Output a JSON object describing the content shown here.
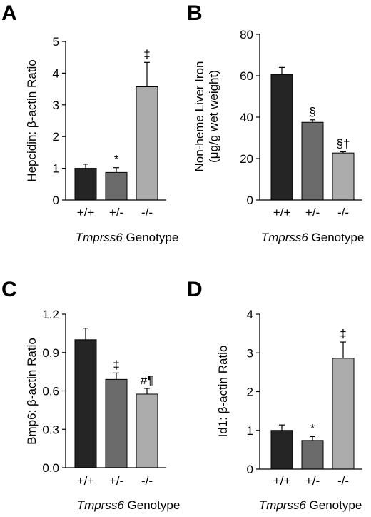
{
  "colors": {
    "genotype_wt": "#252525",
    "genotype_het": "#6b6b6b",
    "genotype_ko": "#acacac",
    "axis": "#000000"
  },
  "chart_data": [
    {
      "panel": "A",
      "type": "bar",
      "categories": [
        "+/+",
        "+/-",
        "-/-"
      ],
      "values": [
        1.0,
        0.87,
        3.57
      ],
      "errors": [
        0.13,
        0.15,
        0.77
      ],
      "markers": [
        "",
        "*",
        "‡"
      ],
      "ylabel": "Hepcidin: β-actin Ratio",
      "ylabel_lines": [
        "Hepcidin: β-actin Ratio"
      ],
      "xlabel_italic": "Tmprss6",
      "xlabel_rest": " Genotype",
      "ylim": [
        0,
        5
      ],
      "yticks": [
        "0",
        "1",
        "2",
        "3",
        "4",
        "5"
      ],
      "ytick_values": [
        0,
        1,
        2,
        3,
        4,
        5
      ],
      "grid": false
    },
    {
      "panel": "B",
      "type": "bar",
      "categories": [
        "+/+",
        "+/-",
        "-/-"
      ],
      "values": [
        60.5,
        37.5,
        22.7
      ],
      "errors": [
        3.5,
        1.2,
        0.6
      ],
      "markers": [
        "",
        "§",
        "§†"
      ],
      "ylabel": "Non-heme Liver Iron (μg/g wet weight)",
      "ylabel_lines": [
        "Non-heme Liver Iron",
        "(μg/g wet weight)"
      ],
      "xlabel_italic": "Tmprss6",
      "xlabel_rest": " Genotype",
      "ylim": [
        0,
        80
      ],
      "yticks": [
        "0",
        "20",
        "40",
        "60",
        "80"
      ],
      "ytick_values": [
        0,
        20,
        40,
        60,
        80
      ],
      "grid": false
    },
    {
      "panel": "C",
      "type": "bar",
      "categories": [
        "+/+",
        "+/-",
        "-/-"
      ],
      "values": [
        1.0,
        0.69,
        0.575
      ],
      "errors": [
        0.09,
        0.05,
        0.045
      ],
      "markers": [
        "",
        "‡",
        "#¶"
      ],
      "ylabel": "Bmp6: β-actin Ratio",
      "ylabel_lines": [
        "Bmp6: β-actin Ratio"
      ],
      "xlabel_italic": "Tmprss6",
      "xlabel_rest": " Genotype",
      "ylim": [
        0,
        1.2
      ],
      "yticks": [
        "0.0",
        "0.3",
        "0.6",
        "0.9",
        "1.2"
      ],
      "ytick_values": [
        0,
        0.3,
        0.6,
        0.9,
        1.2
      ],
      "grid": false
    },
    {
      "panel": "D",
      "type": "bar",
      "categories": [
        "+/+",
        "+/-",
        "-/-"
      ],
      "values": [
        1.0,
        0.74,
        2.86
      ],
      "errors": [
        0.14,
        0.1,
        0.42
      ],
      "markers": [
        "",
        "*",
        "‡"
      ],
      "ylabel": "Id1: β-actin Ratio",
      "ylabel_lines": [
        "Id1: β-actin Ratio"
      ],
      "xlabel_italic": "Tmprss6",
      "xlabel_rest": " Genotype",
      "ylim": [
        0,
        4
      ],
      "yticks": [
        "0",
        "1",
        "2",
        "3",
        "4"
      ],
      "ytick_values": [
        0,
        1,
        2,
        3,
        4
      ],
      "grid": false
    }
  ]
}
